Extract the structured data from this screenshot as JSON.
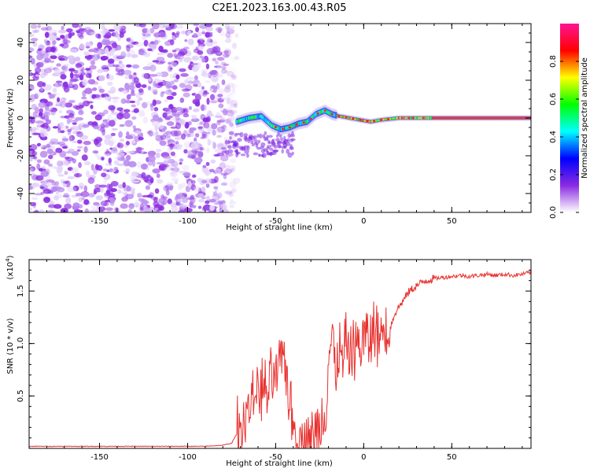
{
  "title": "C2E1.2023.163.00.43.R05",
  "chart_data": [
    {
      "type": "heatmap",
      "xlabel": "Height of straight line (km)",
      "ylabel": "Frequency (Hz)",
      "xlim": [
        -190,
        95
      ],
      "ylim": [
        -50,
        50
      ],
      "xticks": [
        -150,
        -100,
        -50,
        0,
        50
      ],
      "yticks": [
        -40,
        -20,
        0,
        20,
        40
      ],
      "grid": false,
      "colorbar": {
        "label": "Normalized spectral amplitude",
        "range": [
          0,
          1
        ],
        "ticks": [
          0.0,
          0.2,
          0.4,
          0.6,
          0.8
        ],
        "colors": [
          "#ffffff",
          "#8a2be2",
          "#0000ff",
          "#00ffff",
          "#00ff00",
          "#ffff00",
          "#ff0000",
          "#ff1493"
        ]
      },
      "regions": [
        {
          "x_range": [
            -190,
            -72
          ],
          "freq_range": [
            -50,
            50
          ],
          "amplitude": 0.05,
          "pattern": "broadband noise"
        },
        {
          "x_range": [
            -72,
            -15
          ],
          "freq_center": 0,
          "amplitude": 0.35,
          "pattern": "wavy narrowband trace"
        },
        {
          "x_range": [
            -15,
            95
          ],
          "freq_center": 0,
          "amplitude": 0.8,
          "pattern": "steady narrowband trace"
        }
      ],
      "trace": {
        "x": [
          -72,
          -65,
          -58,
          -52,
          -47,
          -42,
          -37,
          -32,
          -27,
          -22,
          -18,
          -14,
          -8,
          -2,
          4,
          10,
          20,
          40,
          60,
          95
        ],
        "freq": [
          -2,
          0,
          1,
          -4,
          -6,
          -5,
          -3,
          -2,
          2,
          4,
          2,
          1,
          0,
          -1,
          -2,
          -1,
          0,
          0,
          0,
          0
        ]
      }
    },
    {
      "type": "line",
      "xlabel": "Height of straight line (km)",
      "ylabel": "SNR (10 * v/v)",
      "y_multiplier": "(x10",
      "y_multiplier_exponent": "4",
      "y_multiplier_suffix": ")",
      "xlim": [
        -190,
        95
      ],
      "ylim": [
        0,
        1.8
      ],
      "xticks": [
        -150,
        -100,
        -50,
        0,
        50
      ],
      "yticks": [
        0.5,
        1.0,
        1.5
      ],
      "grid": false,
      "series": [
        {
          "color": "#e8322f",
          "x": [
            -190,
            -170,
            -150,
            -130,
            -110,
            -90,
            -80,
            -75,
            -70,
            -65,
            -60,
            -55,
            -50,
            -45,
            -40,
            -35,
            -30,
            -25,
            -22,
            -20,
            -18,
            -16,
            -14,
            -12,
            -10,
            -8,
            -5,
            -2,
            0,
            3,
            6,
            9,
            12,
            15,
            18,
            22,
            26,
            30,
            35,
            40,
            45,
            50,
            55,
            60,
            65,
            70,
            75,
            80,
            85,
            90,
            95
          ],
          "y": [
            0.02,
            0.02,
            0.02,
            0.02,
            0.02,
            0.02,
            0.03,
            0.05,
            0.2,
            0.45,
            0.6,
            0.55,
            0.7,
            0.9,
            0.25,
            0.12,
            0.08,
            0.25,
            0.4,
            0.9,
            1.1,
            0.75,
            0.9,
            0.85,
            1.0,
            0.95,
            1.05,
            1.0,
            1.1,
            1.05,
            1.15,
            1.1,
            1.2,
            1.15,
            1.3,
            1.4,
            1.5,
            1.55,
            1.6,
            1.62,
            1.63,
            1.64,
            1.65,
            1.64,
            1.65,
            1.66,
            1.65,
            1.66,
            1.65,
            1.66,
            1.68
          ]
        }
      ]
    }
  ]
}
